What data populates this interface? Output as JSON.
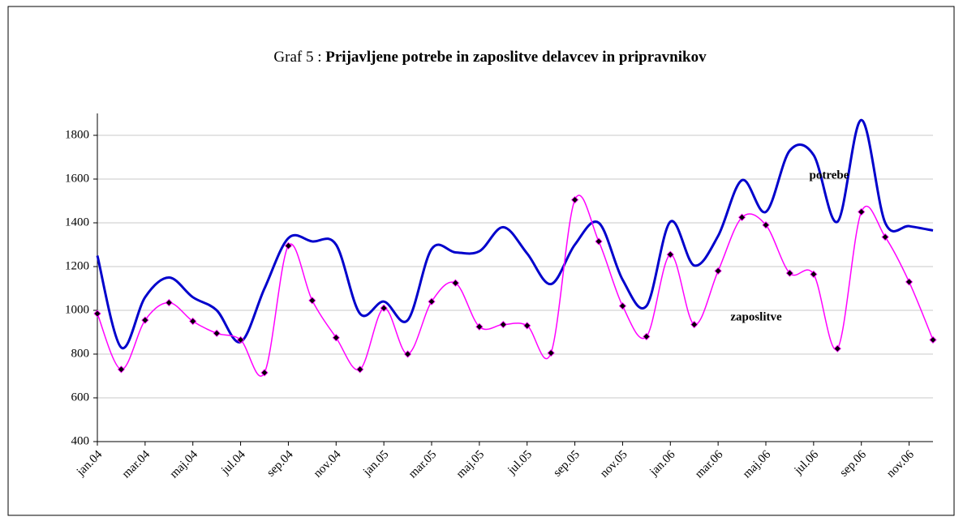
{
  "chart_data": {
    "type": "line",
    "title_prefix": "Graf 5 :",
    "title": "Prijavljene potrebe in zaposlitve delavcev in pripravnikov",
    "categories": [
      "jan.04",
      null,
      "mar.04",
      null,
      "maj.04",
      null,
      "jul.04",
      null,
      "sep.04",
      null,
      "nov.04",
      null,
      "jan.05",
      null,
      "mar.05",
      null,
      "maj.05",
      null,
      "jul.05",
      null,
      "sep.05",
      null,
      "nov.05",
      null,
      "jan.06",
      null,
      "mar.06",
      null,
      "maj.06",
      null,
      "jul.06",
      null,
      "sep.06",
      null,
      "nov.06",
      null
    ],
    "series": [
      {
        "name": "potrebe",
        "color": "#0000cc",
        "markers": false,
        "values": [
          1250,
          830,
          1060,
          1150,
          1060,
          1000,
          855,
          1100,
          1330,
          1315,
          1300,
          985,
          1040,
          955,
          1280,
          1265,
          1270,
          1380,
          1260,
          1120,
          1300,
          1400,
          1140,
          1020,
          1405,
          1205,
          1340,
          1595,
          1450,
          1730,
          1710,
          1405,
          1870,
          1400,
          1385,
          1365
        ]
      },
      {
        "name": "zaposlitve",
        "color": "#ff00ff",
        "markers": true,
        "values": [
          985,
          730,
          955,
          1035,
          950,
          895,
          865,
          715,
          1295,
          1045,
          875,
          730,
          1010,
          800,
          1040,
          1125,
          925,
          935,
          930,
          805,
          1505,
          1315,
          1020,
          880,
          1255,
          935,
          1180,
          1425,
          1390,
          1170,
          1165,
          825,
          1450,
          1335,
          1130,
          865
        ]
      }
    ],
    "ylim": [
      400,
      1900
    ],
    "yticks": [
      400,
      600,
      800,
      1000,
      1200,
      1400,
      1600,
      1800
    ],
    "grid": true
  }
}
